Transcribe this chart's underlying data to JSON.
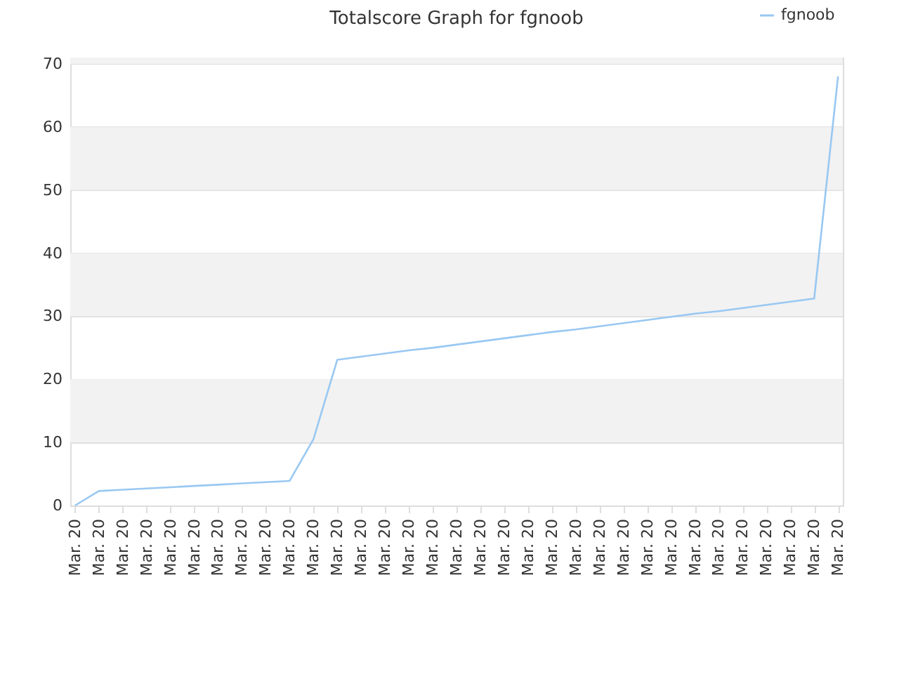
{
  "chart_data": {
    "type": "line",
    "title": "Totalscore Graph for fgnoob",
    "categories": [
      "Mar. 20",
      "Mar. 20",
      "Mar. 20",
      "Mar. 20",
      "Mar. 20",
      "Mar. 20",
      "Mar. 20",
      "Mar. 20",
      "Mar. 20",
      "Mar. 20",
      "Mar. 20",
      "Mar. 20",
      "Mar. 20",
      "Mar. 20",
      "Mar. 20",
      "Mar. 20",
      "Mar. 20",
      "Mar. 20",
      "Mar. 20",
      "Mar. 20",
      "Mar. 20",
      "Mar. 20",
      "Mar. 20",
      "Mar. 20",
      "Mar. 20",
      "Mar. 20",
      "Mar. 20",
      "Mar. 20",
      "Mar. 20",
      "Mar. 20",
      "Mar. 20",
      "Mar. 20",
      "Mar. 20"
    ],
    "series": [
      {
        "name": "fgnoob",
        "color": "#99c8f2",
        "values": [
          0,
          2.3,
          2.5,
          2.7,
          2.9,
          3.1,
          3.3,
          3.5,
          3.7,
          3.9,
          10.5,
          23.1,
          23.6,
          24.1,
          24.6,
          25.0,
          25.5,
          26.0,
          26.5,
          27.0,
          27.5,
          27.9,
          28.4,
          28.9,
          29.4,
          29.9,
          30.4,
          30.8,
          31.3,
          31.8,
          32.3,
          32.8,
          68
        ]
      }
    ],
    "ylim": [
      0,
      71
    ],
    "yticks": [
      0,
      10,
      20,
      30,
      40,
      50,
      60,
      70
    ],
    "bands": [
      {
        "axis": "y",
        "from": 10,
        "to": 20,
        "color": "#f2f2f2"
      },
      {
        "axis": "y",
        "from": 30,
        "to": 40,
        "color": "#f2f2f2"
      },
      {
        "axis": "y",
        "from": 50,
        "to": 60,
        "color": "#f2f2f2"
      },
      {
        "axis": "y",
        "from": 70,
        "to": 71,
        "color": "#f2f2f2"
      }
    ],
    "grid": "y",
    "legend": "top right",
    "marker": "none",
    "line_style": "solid"
  }
}
